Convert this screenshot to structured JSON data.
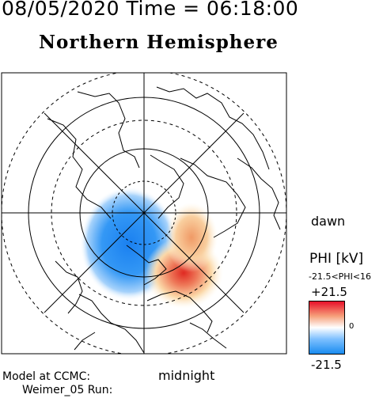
{
  "title": "08/05/2020 Time = 06:18:00",
  "subtitle": "Northern Hemisphere",
  "labels": {
    "dawn": "dawn",
    "midnight": "midnight"
  },
  "colorbar": {
    "title": "PHI [kV]",
    "range_text": "-21.5<PHI<16",
    "max_label": "+21.5",
    "zero_label": "0",
    "min_label": "-21.5",
    "max_color": "#e8102a",
    "min_color": "#1a8cf0"
  },
  "model": {
    "line1": "Model at CCMC:",
    "line2": "Weimer_05 Run:"
  }
}
